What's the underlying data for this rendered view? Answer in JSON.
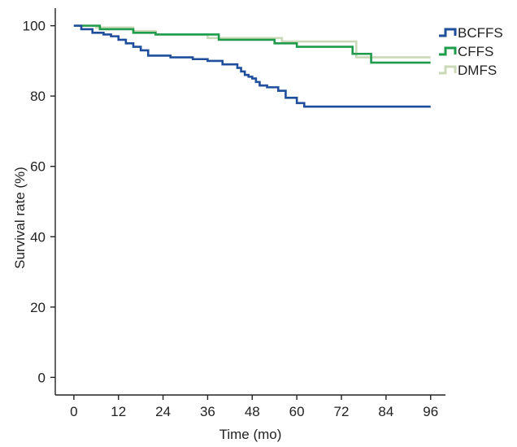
{
  "chart_data": {
    "type": "line",
    "step": true,
    "xlabel": "Time (mo)",
    "ylabel": "Survival rate (%)",
    "xlim": [
      -5,
      100
    ],
    "ylim": [
      -5,
      105
    ],
    "xticks": [
      0,
      12,
      24,
      36,
      48,
      60,
      72,
      84,
      96
    ],
    "yticks": [
      0,
      20,
      40,
      60,
      80,
      100
    ],
    "legend_position": "top-right",
    "series": [
      {
        "name": "BCFFS",
        "color": "#1f4e9c",
        "x": [
          0,
          2,
          5,
          8,
          10,
          12,
          14,
          16,
          18,
          20,
          26,
          32,
          36,
          40,
          44,
          45,
          46,
          47,
          48,
          49,
          50,
          52,
          55,
          57,
          58,
          60,
          62,
          96
        ],
        "y": [
          100,
          99,
          98,
          97.5,
          97,
          96,
          95,
          94,
          93,
          91.5,
          91,
          90.5,
          90,
          89,
          88,
          87,
          86,
          85.5,
          85,
          84,
          83,
          82.5,
          81.5,
          79.5,
          79.5,
          78,
          77,
          77
        ]
      },
      {
        "name": "CFFS",
        "color": "#1e9c4c",
        "x": [
          0,
          7,
          16,
          22,
          39,
          54,
          60,
          75,
          80,
          96
        ],
        "y": [
          100,
          99,
          98,
          97.5,
          96,
          95,
          94,
          92,
          89.5,
          89.5
        ]
      },
      {
        "name": "DMFS",
        "color": "#cbd9b8",
        "x": [
          0,
          6,
          16,
          22,
          36,
          56,
          76,
          96
        ],
        "y": [
          100,
          99.5,
          98.5,
          97.5,
          96.5,
          95.5,
          91,
          91
        ]
      }
    ]
  }
}
